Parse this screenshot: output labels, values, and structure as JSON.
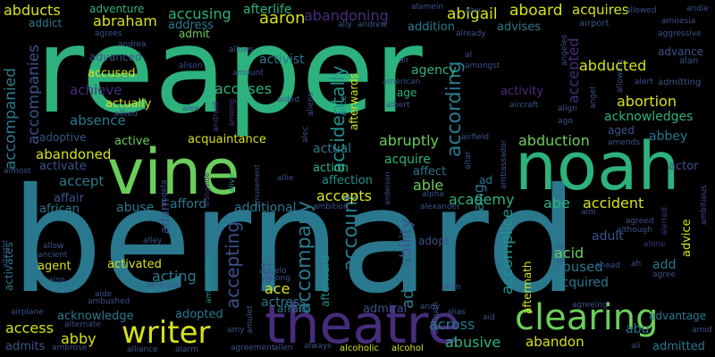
{
  "palette": {
    "bg": "#000000",
    "green": "#2db27d",
    "lime": "#6ccd5a",
    "teal": "#2a788e",
    "blue": "#3b528b",
    "purple": "#472d7b",
    "indigo": "#46337e",
    "yellow": "#d5e21a",
    "cyan": "#21918c",
    "dark": "#414487"
  },
  "words": {
    "reaper": "reaper",
    "bernard": "bernard",
    "vine": "vine",
    "noah": "noah",
    "theatre": "theatre",
    "clearing": "clearing",
    "writer": "writer",
    "accompany": "accompany",
    "accepting": "accepting",
    "account": "account",
    "accidentally": "accidentally",
    "according": "according",
    "accompanied": "accompanied",
    "accompanies": "accompanies",
    "accomplice": "accomplice",
    "abduction": "abduction",
    "abortion": "abortion",
    "abruptly": "abruptly",
    "abducts": "abducts",
    "abraham": "abraham",
    "accusing": "accusing",
    "abandoning": "abandoning",
    "abigail": "abigail",
    "aboard": "aboard",
    "acquires": "acquires",
    "adventure": "adventure",
    "afterlife": "afterlife",
    "addict": "addict",
    "address": "address",
    "aaron": "aaron",
    "addition": "addition",
    "advises": "advises",
    "admit": "admit",
    "advanced": "advanced",
    "activist": "activist",
    "agency": "agency",
    "accused": "accused",
    "accuses": "accuses",
    "achieve": "achieve",
    "actually": "actually",
    "absence": "absence",
    "activity": "activity",
    "abducted": "abducted",
    "advance": "advance",
    "admitting": "admitting",
    "acknowledges": "acknowledges",
    "adoptive": "adoptive",
    "active": "active",
    "acquaintance": "acquaintance",
    "actual": "actual",
    "aged": "aged",
    "abbey": "abbey",
    "abandoned": "abandoned",
    "activate": "activate",
    "accept": "accept",
    "acquire": "acquire",
    "affect": "affect",
    "action": "action",
    "affection": "affection",
    "able": "able",
    "actor": "actor",
    "accepts": "accepts",
    "academy": "academy",
    "abe": "abe",
    "accident": "accident",
    "affair": "affair",
    "abuse": "abuse",
    "afford": "afford",
    "african": "african",
    "additional": "additional",
    "agent": "agent",
    "activated": "activated",
    "acting": "acting",
    "ace": "ace",
    "actress": "actress",
    "adding": "adding",
    "ability": "ability",
    "admiral": "admiral",
    "acid": "acid",
    "abused": "abused",
    "acquired": "acquired",
    "adult": "adult",
    "add": "add",
    "acknowledge": "acknowledge",
    "adopted": "adopted",
    "afraid": "afraid",
    "access": "access",
    "abby": "abby",
    "across": "across",
    "abusive": "abusive",
    "abandon": "abandon",
    "abu": "abu",
    "advantage": "advantage",
    "admitted": "admitted",
    "admits": "admits",
    "advice": "advice",
    "age": "age",
    "adopt": "adopt",
    "afterward": "afterward",
    "aftermath": "aftermath",
    "accepted": "accepted",
    "aang": "aang",
    "ad": "ad",
    "act": "act",
    "adam": "adam",
    "activates": "activates",
    "ahead": "ahead",
    "ah": "ah",
    "agree": "agree",
    "agreed": "agreed",
    "aim": "aim",
    "agreeing": "agreeing",
    "alan": "alan",
    "alert": "alert",
    "alerted": "alerted",
    "alone": "alone",
    "although": "although",
    "ambitious": "ambitious",
    "amends": "amends",
    "allowed": "allowed",
    "andie": "andie",
    "amnesia": "amnesia",
    "airport": "airport",
    "aggressive": "aggressive",
    "alter": "alter",
    "alamein": "alamein",
    "already": "already",
    "agrees": "agrees",
    "andrea": "andrea",
    "ally": "ally",
    "andrew": "andrew",
    "allows": "allows",
    "alison": "alison",
    "amount": "amount",
    "air": "air",
    "amongst": "amongst",
    "al": "al",
    "american": "american",
    "alfred": "alfred",
    "alex": "alex",
    "among": "among",
    "android": "android",
    "aided": "aided",
    "albert": "albert",
    "aircraft": "aircraft",
    "align": "align",
    "ago": "ago",
    "afterwards": "afterwards",
    "alice": "alice",
    "alec": "alec",
    "airfield": "airfield",
    "ambassador": "ambassador",
    "altar": "altar",
    "almost": "almost",
    "allie": "allie",
    "alive": "alive",
    "amusement": "amusement",
    "angela": "angela",
    "alongside": "alongside",
    "alpha": "alpha",
    "anderson": "anderson",
    "alexander": "alexander",
    "ambition": "ambition",
    "allow": "allow",
    "ancient": "ancient",
    "also": "also",
    "albright": "albright",
    "alley": "alley",
    "angelo": "angelo",
    "along": "along",
    "alien": "alien",
    "andy": "andy",
    "aging": "aging",
    "aide": "aide",
    "ambushed": "ambushed",
    "america": "america",
    "ammunition": "ammunition",
    "airplane": "airplane",
    "alternate": "alternate",
    "amulet": "amulet",
    "amy": "amy",
    "ambrose": "ambrose",
    "alliance": "alliance",
    "alarm": "alarm",
    "agreement": "agreement",
    "allen": "allen",
    "always": "always",
    "alcoholic": "alcoholic",
    "alcohol": "alcohol",
    "ambush": "ambush",
    "alias": "alias",
    "aid": "aid",
    "ali": "ali",
    "amid": "amid",
    "allowing": "allowing",
    "angel": "angel",
    "angeles": "angeles",
    "aliens": "aliens"
  }
}
